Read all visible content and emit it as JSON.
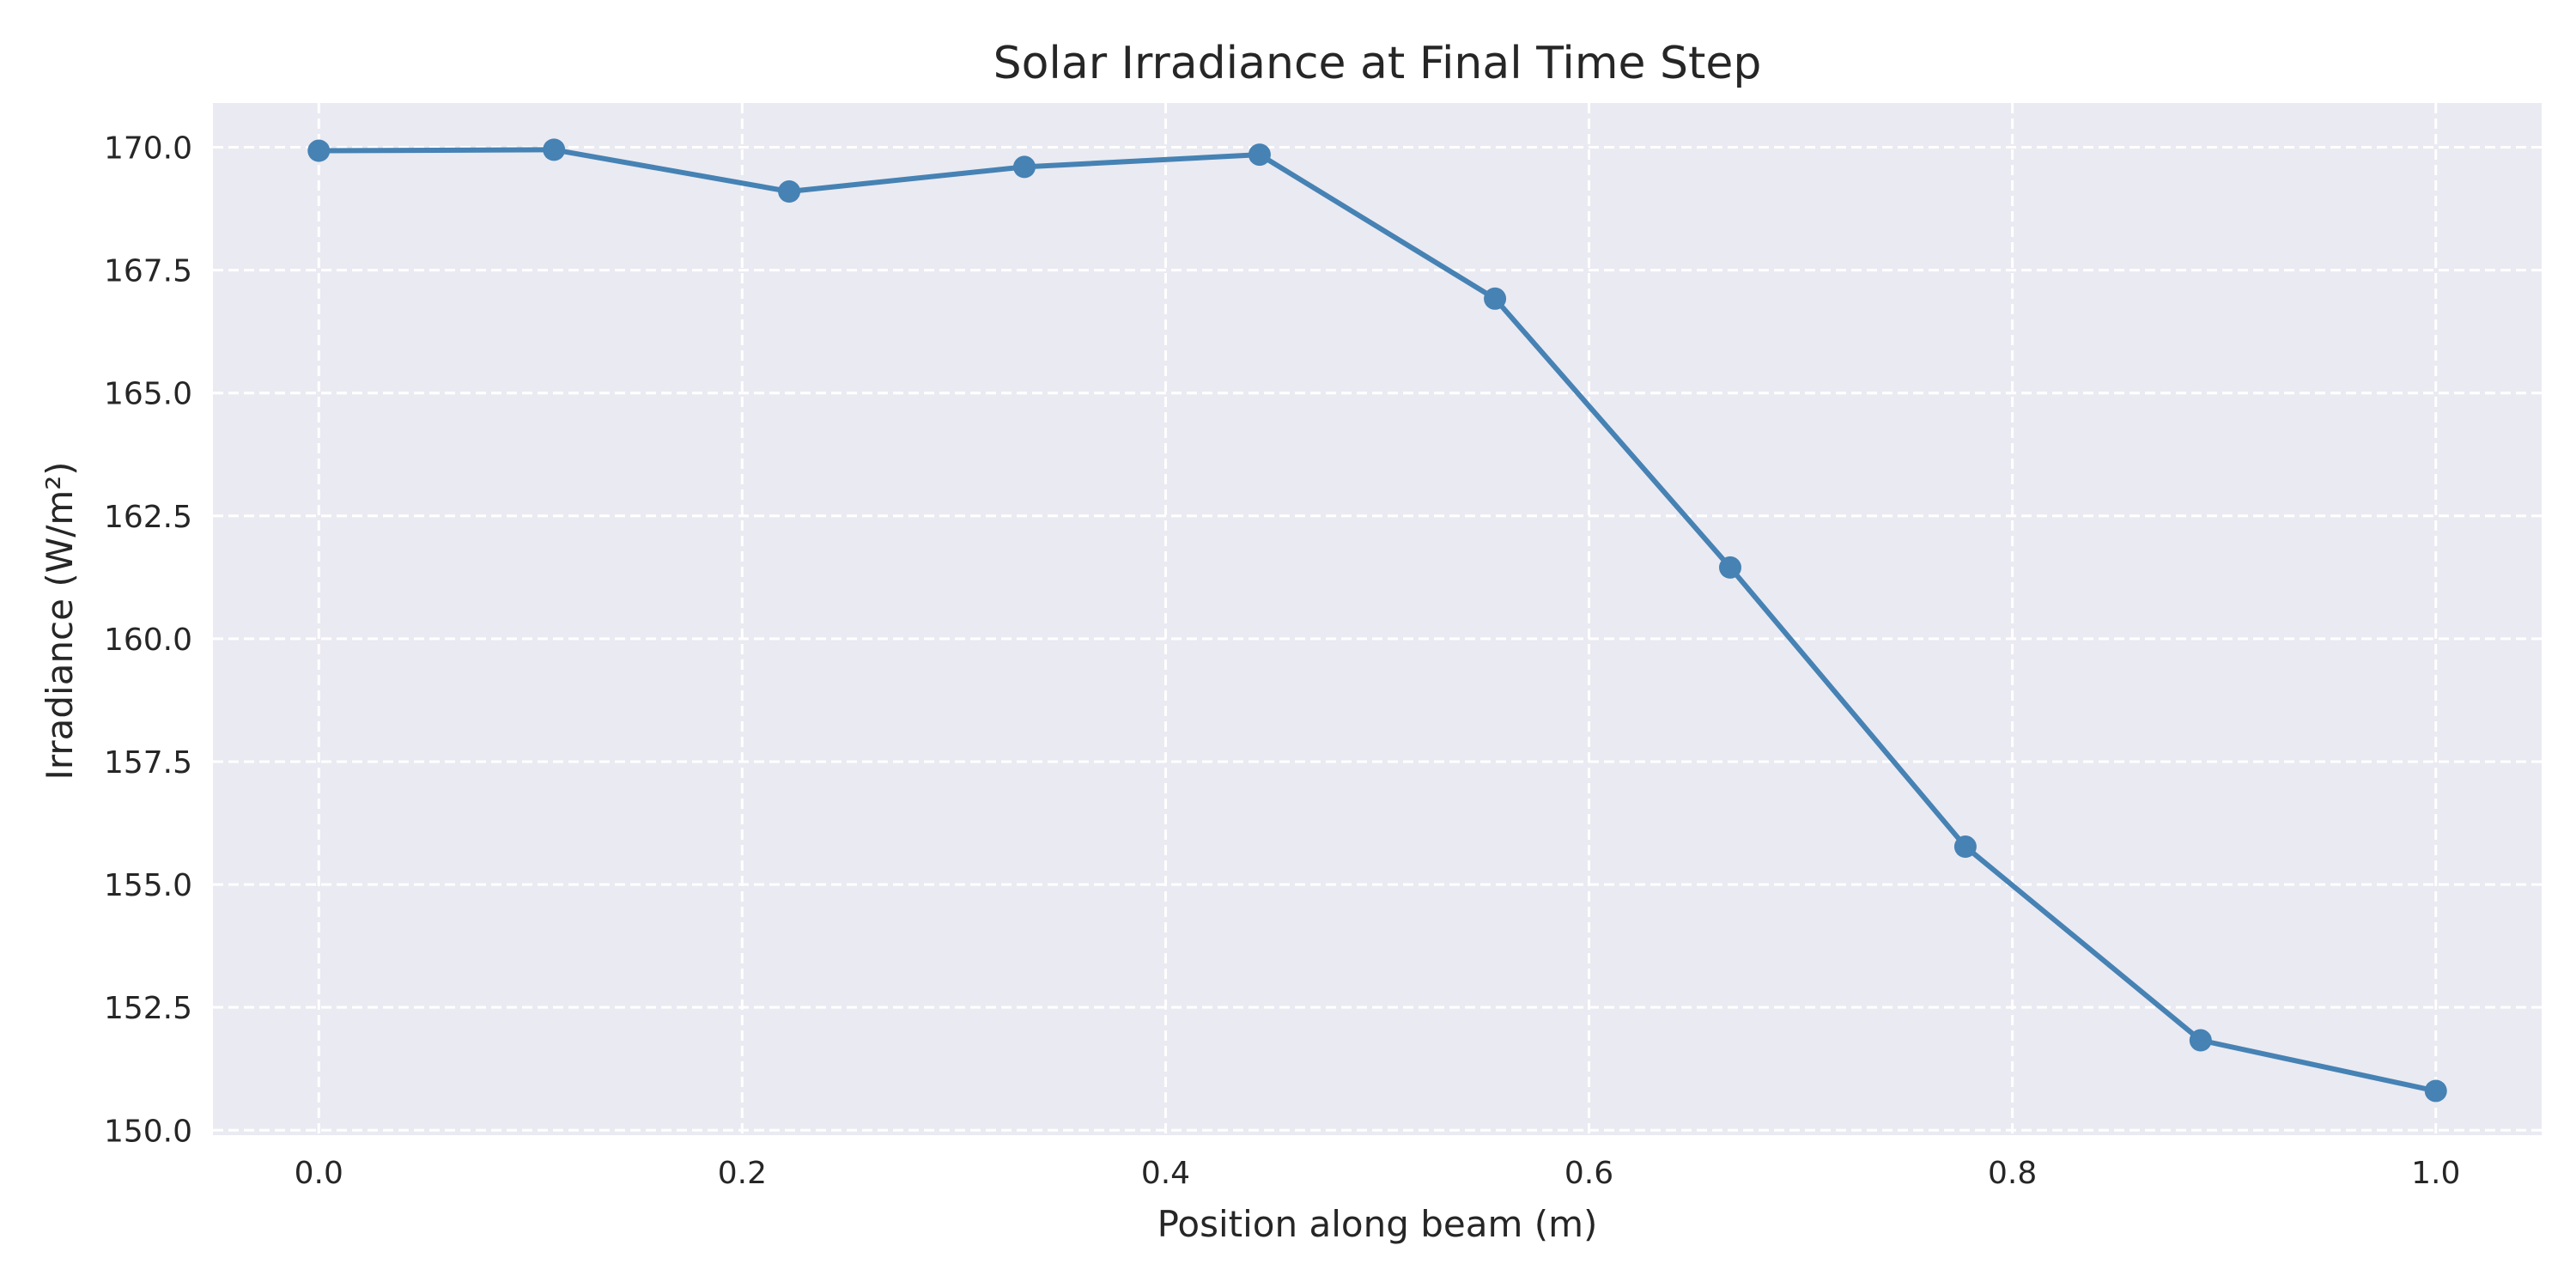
{
  "chart_data": {
    "type": "line",
    "title": "Solar Irradiance at Final Time Step",
    "xlabel": "Position along beam (m)",
    "ylabel": "Irradiance (W/m²)",
    "xlim": [
      -0.05,
      1.05
    ],
    "ylim": [
      149.9,
      170.9
    ],
    "x_ticks": [
      "0.0",
      "0.2",
      "0.4",
      "0.6",
      "0.8",
      "1.0"
    ],
    "y_ticks": [
      "150.0",
      "152.5",
      "155.0",
      "157.5",
      "160.0",
      "162.5",
      "165.0",
      "167.5",
      "170.0"
    ],
    "grid": true,
    "series": [
      {
        "x": [
          0.0,
          0.1111,
          0.2222,
          0.3333,
          0.4444,
          0.5556,
          0.6667,
          0.7778,
          0.8889,
          1.0
        ],
        "values": [
          169.93,
          169.95,
          169.1,
          169.6,
          169.85,
          166.92,
          161.45,
          155.77,
          151.83,
          150.8
        ],
        "color": "#4682b4"
      }
    ],
    "plot_background": "#eaeaf2"
  }
}
